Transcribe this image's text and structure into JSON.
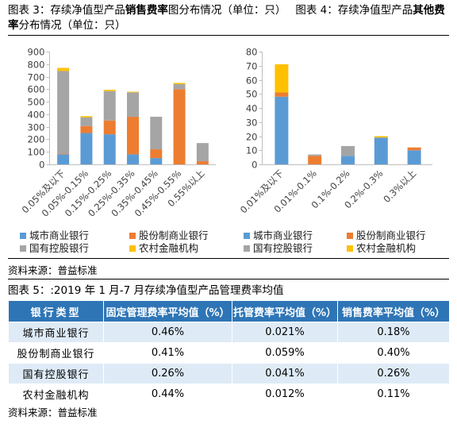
{
  "captions": {
    "fig3": {
      "prefix": "图表 3：存续净值型产品",
      "bold": "销售费率",
      "suffix": "图分布情况（单位：只）"
    },
    "fig4": {
      "prefix": "图表 4：存续净值型产品",
      "bold": "其他费率",
      "suffix": "分布情况（单位：只）"
    },
    "fig5": "图表 5：:2019 年 1 月-7 月存续净值型产品管理费率均值"
  },
  "sources": {
    "charts": "资料来源：普益标准",
    "table": "资料来源：普益标准"
  },
  "chart_data": [
    {
      "type": "bar",
      "stacked": true,
      "categories": [
        "0.05%及以下",
        "0.05%-0.15%",
        "0.15%-0.25%",
        "0.25%-0.35%",
        "0.35%-0.45%",
        "0.45%-0.55%",
        "0.55%以上"
      ],
      "series": [
        {
          "name": "城市商业银行",
          "color": "#5B9BD5",
          "values": [
            80,
            250,
            240,
            80,
            50,
            0,
            0
          ]
        },
        {
          "name": "股份制商业银行",
          "color": "#ED7D31",
          "values": [
            5,
            55,
            110,
            300,
            70,
            600,
            25
          ]
        },
        {
          "name": "国有控股银行",
          "color": "#A5A5A5",
          "values": [
            660,
            70,
            235,
            195,
            260,
            40,
            145
          ]
        },
        {
          "name": "农村金融机构",
          "color": "#FFC000",
          "values": [
            25,
            10,
            10,
            5,
            0,
            10,
            0
          ]
        }
      ],
      "ylim": [
        0,
        900
      ],
      "yticks": [
        0,
        100,
        200,
        300,
        400,
        500,
        600,
        700,
        800,
        900
      ],
      "grid": false,
      "legend": "bottom"
    },
    {
      "type": "bar",
      "stacked": true,
      "categories": [
        "0.01%及以下",
        "0.01%-0.1%",
        "0.1%-0.2%",
        "0.2%-0.3%",
        "0.3%以上"
      ],
      "series": [
        {
          "name": "城市商业银行",
          "color": "#5B9BD5",
          "values": [
            48,
            0,
            6,
            19,
            10
          ]
        },
        {
          "name": "股份制商业银行",
          "color": "#ED7D31",
          "values": [
            3,
            6,
            0,
            0,
            2
          ]
        },
        {
          "name": "国有控股银行",
          "color": "#A5A5A5",
          "values": [
            0,
            1,
            7,
            0,
            0
          ]
        },
        {
          "name": "农村金融机构",
          "color": "#FFC000",
          "values": [
            20,
            0,
            0,
            1,
            0
          ]
        }
      ],
      "ylim": [
        0,
        80
      ],
      "yticks": [
        0,
        10,
        20,
        30,
        40,
        50,
        60,
        70,
        80
      ],
      "grid": false,
      "legend": "bottom"
    }
  ],
  "table": {
    "headers": [
      "银行类型",
      "固定管理费率平均值（%）",
      "托管费率平均值（%）",
      "销售费率平均值（%）"
    ],
    "rows": [
      [
        "城市商业银行",
        "0.46%",
        "0.021%",
        "0.18%"
      ],
      [
        "股份制商业银行",
        "0.41%",
        "0.059%",
        "0.40%"
      ],
      [
        "国有控股银行",
        "0.26%",
        "0.041%",
        "0.26%"
      ],
      [
        "农村金融机构",
        "0.44%",
        "0.012%",
        "0.11%"
      ]
    ]
  }
}
